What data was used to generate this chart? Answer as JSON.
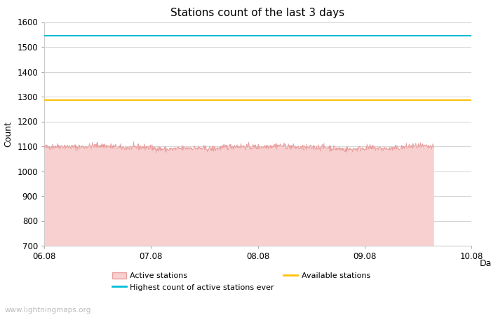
{
  "title": "Stations count of the last 3 days",
  "xlabel": "Day",
  "ylabel": "Count",
  "ylim": [
    700,
    1600
  ],
  "yticks": [
    700,
    800,
    900,
    1000,
    1100,
    1200,
    1300,
    1400,
    1500,
    1600
  ],
  "x_start": 0,
  "x_end": 4,
  "x_tick_positions": [
    0,
    1,
    2,
    3,
    4
  ],
  "x_tick_labels": [
    "06.08",
    "07.08",
    "08.08",
    "09.08",
    "10.08"
  ],
  "active_stations_base": 1095,
  "active_stations_noise": 6,
  "active_stations_fill_bottom": 700,
  "data_end_x": 3.65,
  "highest_count_ever": 1545,
  "available_stations": 1285,
  "active_fill_color": "#f9d0d0",
  "active_line_color": "#e8a0a0",
  "highest_line_color": "#00bcd4",
  "available_line_color": "#ffc107",
  "background_color": "#ffffff",
  "grid_color": "#cccccc",
  "title_fontsize": 11,
  "axis_label_fontsize": 9,
  "tick_fontsize": 8.5,
  "watermark": "www.lightningmaps.org",
  "watermark_fontsize": 7.5,
  "legend_labels": [
    "Active stations",
    "Highest count of active stations ever",
    "Available stations"
  ]
}
